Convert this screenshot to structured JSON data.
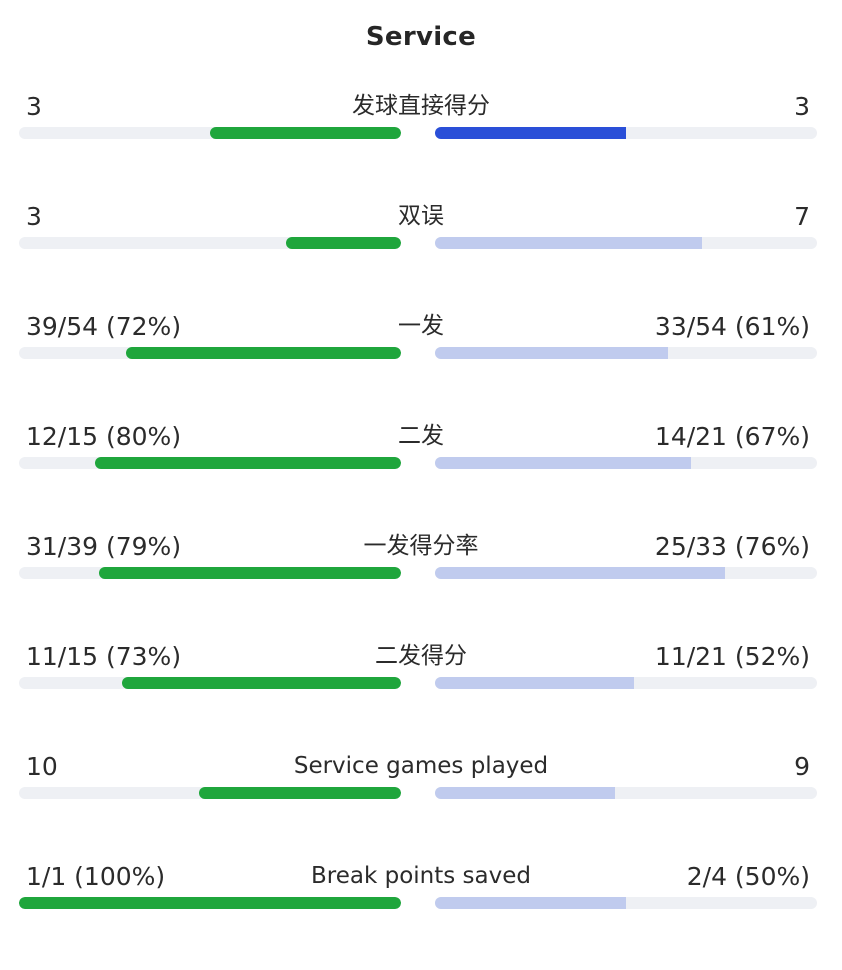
{
  "section": {
    "title": "Service"
  },
  "colors": {
    "player1": "#1fa63c",
    "player2_leading": "#2a4fd8",
    "player2_trailing": "#c0cbee",
    "track": "#eef0f4"
  },
  "stats": [
    {
      "label": "发球直接得分",
      "left": "3",
      "right": "3",
      "left_fill": 0.5,
      "right_fill": 0.5,
      "right_leading": true
    },
    {
      "label": "双误",
      "left": "3",
      "right": "7",
      "left_fill": 0.3,
      "right_fill": 0.7,
      "right_leading": false
    },
    {
      "label": "一发",
      "left": "39/54 (72%)",
      "right": "33/54 (61%)",
      "left_fill": 0.72,
      "right_fill": 0.61,
      "right_leading": false
    },
    {
      "label": "二发",
      "left": "12/15 (80%)",
      "right": "14/21 (67%)",
      "left_fill": 0.8,
      "right_fill": 0.67,
      "right_leading": false
    },
    {
      "label": "一发得分率",
      "left": "31/39 (79%)",
      "right": "25/33 (76%)",
      "left_fill": 0.79,
      "right_fill": 0.76,
      "right_leading": false
    },
    {
      "label": "二发得分",
      "left": "11/15 (73%)",
      "right": "11/21 (52%)",
      "left_fill": 0.73,
      "right_fill": 0.52,
      "right_leading": false
    },
    {
      "label": "Service games played",
      "left": "10",
      "right": "9",
      "left_fill": 0.53,
      "right_fill": 0.47,
      "right_leading": false
    },
    {
      "label": "Break points saved",
      "left": "1/1 (100%)",
      "right": "2/4 (50%)",
      "left_fill": 1.0,
      "right_fill": 0.5,
      "right_leading": false
    }
  ]
}
